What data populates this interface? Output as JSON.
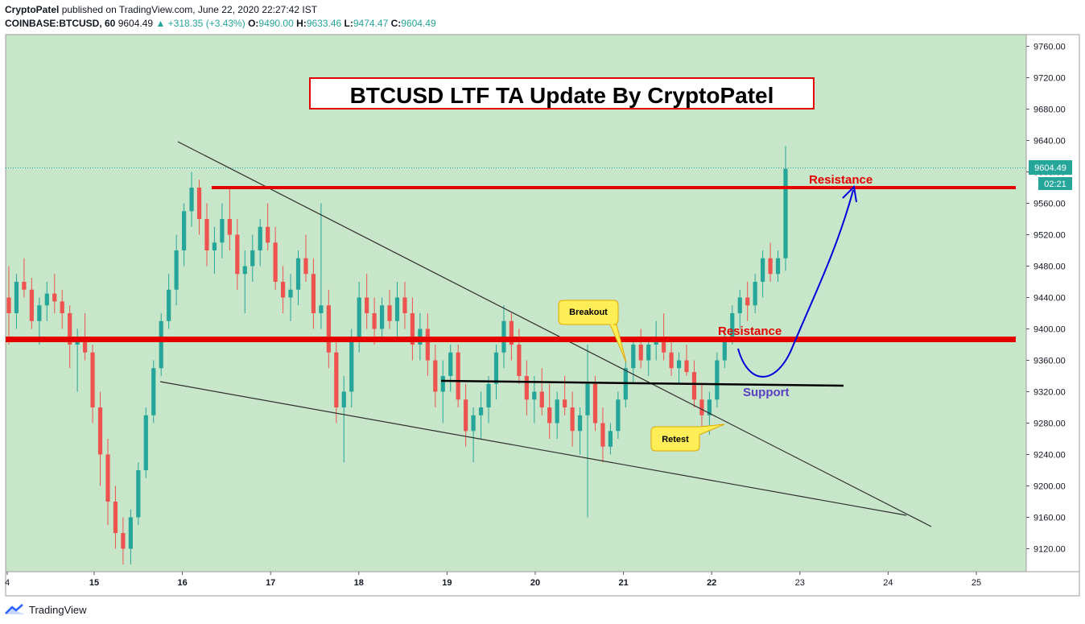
{
  "header": {
    "author": "CryptoPatel",
    "published": " published on TradingView.com, June 22, 2020 22:27:42 IST",
    "symbol": "COINBASE:BTCUSD, 60",
    "price": "9604.49",
    "change": "▲ +318.35 (+3.43%)",
    "o_label": "O:",
    "o_val": "9490.00",
    "h_label": "H:",
    "h_val": "9633.46",
    "l_label": "L:",
    "l_val": "9474.47",
    "c_label": "C:",
    "c_val": "9604.49"
  },
  "footer": {
    "brand": "TradingView"
  },
  "colors": {
    "bg": "#c8e6c9",
    "up": "#26a69a",
    "down": "#ef5350",
    "resistance": "#e50000",
    "curve": "#0000dd",
    "support_text": "#5b3fc4",
    "callout_fill": "#ffee58",
    "callout_stroke": "#e0a800"
  },
  "chart_data": {
    "type": "candlestick",
    "title": "BTCUSD LTF TA Update By CryptoPatel",
    "ylim": [
      9095,
      9790
    ],
    "y_ticks": [
      "9760.00",
      "9720.00",
      "9680.00",
      "9640.00",
      "9600.00",
      "9560.00",
      "9520.00",
      "9480.00",
      "9440.00",
      "9400.00",
      "9360.00",
      "9320.00",
      "9280.00",
      "9240.00",
      "9200.00",
      "9160.00",
      "9120.00"
    ],
    "x_ticks": [
      "4",
      "15",
      "16",
      "17",
      "18",
      "19",
      "20",
      "21",
      "22",
      "23",
      "24",
      "25"
    ],
    "last_price_label": "9604.49",
    "countdown_label": "02:21",
    "last_price": 9604.49,
    "resistance_levels": [
      {
        "price": 9581,
        "label": "Resistance"
      },
      {
        "price": 9385,
        "label": "Resistance"
      }
    ],
    "support": {
      "price": 9330,
      "label": "Support"
    },
    "annotations": [
      {
        "label": "Breakout"
      },
      {
        "label": "Retest"
      }
    ],
    "candles": [
      [
        9440,
        9480,
        9380,
        9420
      ],
      [
        9420,
        9470,
        9400,
        9460
      ],
      [
        9460,
        9490,
        9440,
        9450
      ],
      [
        9450,
        9465,
        9400,
        9410
      ],
      [
        9410,
        9440,
        9380,
        9430
      ],
      [
        9430,
        9460,
        9410,
        9445
      ],
      [
        9445,
        9470,
        9420,
        9435
      ],
      [
        9435,
        9450,
        9400,
        9420
      ],
      [
        9420,
        9430,
        9350,
        9380
      ],
      [
        9380,
        9400,
        9320,
        9390
      ],
      [
        9390,
        9420,
        9360,
        9370
      ],
      [
        9370,
        9380,
        9280,
        9300
      ],
      [
        9300,
        9320,
        9200,
        9240
      ],
      [
        9240,
        9260,
        9150,
        9180
      ],
      [
        9180,
        9200,
        9120,
        9140
      ],
      [
        9140,
        9160,
        9100,
        9120
      ],
      [
        9120,
        9170,
        9100,
        9160
      ],
      [
        9160,
        9230,
        9150,
        9220
      ],
      [
        9220,
        9300,
        9210,
        9290
      ],
      [
        9290,
        9360,
        9280,
        9350
      ],
      [
        9350,
        9420,
        9340,
        9410
      ],
      [
        9410,
        9470,
        9400,
        9450
      ],
      [
        9450,
        9520,
        9430,
        9500
      ],
      [
        9500,
        9560,
        9480,
        9550
      ],
      [
        9550,
        9600,
        9530,
        9580
      ],
      [
        9580,
        9590,
        9520,
        9540
      ],
      [
        9540,
        9560,
        9480,
        9500
      ],
      [
        9500,
        9530,
        9470,
        9510
      ],
      [
        9510,
        9560,
        9490,
        9540
      ],
      [
        9540,
        9580,
        9500,
        9520
      ],
      [
        9520,
        9540,
        9450,
        9470
      ],
      [
        9470,
        9500,
        9420,
        9480
      ],
      [
        9480,
        9520,
        9460,
        9500
      ],
      [
        9500,
        9540,
        9480,
        9530
      ],
      [
        9530,
        9560,
        9500,
        9510
      ],
      [
        9510,
        9530,
        9450,
        9460
      ],
      [
        9460,
        9480,
        9420,
        9440
      ],
      [
        9440,
        9470,
        9410,
        9450
      ],
      [
        9450,
        9500,
        9430,
        9490
      ],
      [
        9490,
        9520,
        9460,
        9470
      ],
      [
        9470,
        9490,
        9400,
        9420
      ],
      [
        9420,
        9560,
        9400,
        9430
      ],
      [
        9430,
        9450,
        9350,
        9370
      ],
      [
        9370,
        9390,
        9280,
        9300
      ],
      [
        9300,
        9340,
        9230,
        9320
      ],
      [
        9320,
        9400,
        9300,
        9390
      ],
      [
        9390,
        9460,
        9370,
        9440
      ],
      [
        9440,
        9470,
        9400,
        9420
      ],
      [
        9420,
        9440,
        9380,
        9400
      ],
      [
        9400,
        9440,
        9390,
        9430
      ],
      [
        9430,
        9450,
        9400,
        9410
      ],
      [
        9410,
        9460,
        9390,
        9440
      ],
      [
        9440,
        9460,
        9400,
        9420
      ],
      [
        9420,
        9440,
        9360,
        9380
      ],
      [
        9380,
        9420,
        9360,
        9400
      ],
      [
        9400,
        9420,
        9340,
        9360
      ],
      [
        9360,
        9380,
        9300,
        9320
      ],
      [
        9320,
        9360,
        9280,
        9340
      ],
      [
        9340,
        9380,
        9320,
        9370
      ],
      [
        9370,
        9380,
        9300,
        9310
      ],
      [
        9310,
        9330,
        9250,
        9270
      ],
      [
        9270,
        9300,
        9230,
        9290
      ],
      [
        9290,
        9320,
        9260,
        9300
      ],
      [
        9300,
        9340,
        9280,
        9330
      ],
      [
        9330,
        9380,
        9310,
        9370
      ],
      [
        9370,
        9430,
        9350,
        9410
      ],
      [
        9410,
        9420,
        9360,
        9380
      ],
      [
        9380,
        9400,
        9330,
        9340
      ],
      [
        9340,
        9360,
        9290,
        9310
      ],
      [
        9310,
        9340,
        9280,
        9320
      ],
      [
        9320,
        9350,
        9290,
        9300
      ],
      [
        9300,
        9330,
        9260,
        9280
      ],
      [
        9280,
        9320,
        9260,
        9310
      ],
      [
        9310,
        9340,
        9290,
        9300
      ],
      [
        9300,
        9320,
        9250,
        9270
      ],
      [
        9270,
        9300,
        9240,
        9290
      ],
      [
        9290,
        9380,
        9160,
        9330
      ],
      [
        9330,
        9340,
        9270,
        9280
      ],
      [
        9280,
        9300,
        9230,
        9250
      ],
      [
        9250,
        9280,
        9240,
        9270
      ],
      [
        9270,
        9320,
        9260,
        9310
      ],
      [
        9310,
        9360,
        9300,
        9350
      ],
      [
        9350,
        9390,
        9330,
        9380
      ],
      [
        9380,
        9400,
        9350,
        9360
      ],
      [
        9360,
        9390,
        9340,
        9380
      ],
      [
        9380,
        9410,
        9360,
        9390
      ],
      [
        9390,
        9420,
        9360,
        9370
      ],
      [
        9370,
        9390,
        9340,
        9350
      ],
      [
        9350,
        9370,
        9330,
        9360
      ],
      [
        9360,
        9380,
        9340,
        9345
      ],
      [
        9345,
        9360,
        9300,
        9310
      ],
      [
        9310,
        9330,
        9270,
        9290
      ],
      [
        9290,
        9320,
        9265,
        9310
      ],
      [
        9310,
        9370,
        9300,
        9360
      ],
      [
        9360,
        9400,
        9350,
        9390
      ],
      [
        9390,
        9430,
        9380,
        9420
      ],
      [
        9420,
        9450,
        9400,
        9440
      ],
      [
        9440,
        9460,
        9410,
        9430
      ],
      [
        9430,
        9470,
        9420,
        9460
      ],
      [
        9460,
        9500,
        9440,
        9490
      ],
      [
        9490,
        9510,
        9460,
        9470
      ],
      [
        9470,
        9500,
        9460,
        9490
      ],
      [
        9490,
        9633,
        9474,
        9604
      ]
    ]
  }
}
